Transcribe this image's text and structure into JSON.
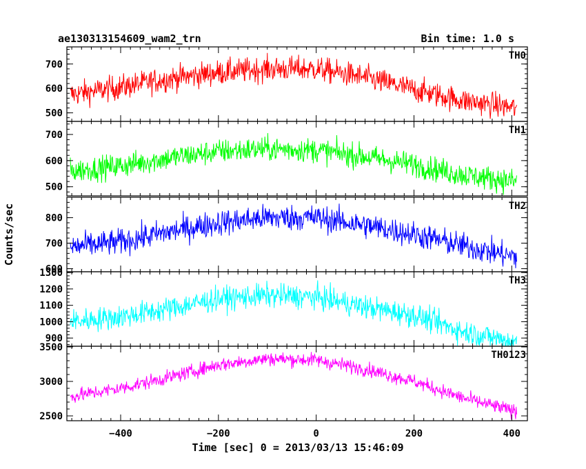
{
  "header": {
    "title": "ae130313154609_wam2_trn",
    "bin_time": "Bin time: 1.0 s"
  },
  "chart_data": {
    "type": "line",
    "xlabel": "Time [sec] 0 = 2013/03/13 15:46:09",
    "ylabel": "Counts/sec",
    "xlim": [
      -510,
      432
    ],
    "x_range": [
      -503,
      410
    ],
    "x_ticks": [
      -400,
      -200,
      0,
      200,
      400
    ],
    "x_tick_labels": [
      "−400",
      "−200",
      "0",
      "200",
      "400"
    ],
    "panels": [
      {
        "name": "TH0",
        "color": "#ff0000",
        "ylim": [
          465,
          770
        ],
        "yticks": [
          500,
          600,
          700
        ],
        "trend_x": [
          -503,
          -400,
          -300,
          -200,
          -100,
          0,
          100,
          200,
          300,
          410
        ],
        "trend_y": [
          575,
          605,
          640,
          665,
          680,
          680,
          645,
          595,
          550,
          520
        ],
        "noise": 35
      },
      {
        "name": "TH1",
        "color": "#00ff00",
        "ylim": [
          465,
          750
        ],
        "yticks": [
          500,
          600,
          700
        ],
        "trend_x": [
          -503,
          -400,
          -300,
          -200,
          -100,
          0,
          100,
          200,
          300,
          410
        ],
        "trend_y": [
          560,
          580,
          610,
          635,
          645,
          640,
          615,
          585,
          545,
          520
        ],
        "noise": 32
      },
      {
        "name": "TH2",
        "color": "#0000ff",
        "ylim": [
          588,
          880
        ],
        "yticks": [
          600,
          700,
          800
        ],
        "trend_x": [
          -503,
          -400,
          -300,
          -200,
          -100,
          0,
          100,
          200,
          300,
          410
        ],
        "trend_y": [
          685,
          705,
          745,
          780,
          800,
          800,
          770,
          735,
          690,
          645
        ],
        "noise": 35
      },
      {
        "name": "TH3",
        "color": "#00ffff",
        "ylim": [
          850,
          1305
        ],
        "yticks": [
          900,
          1000,
          1100,
          1200,
          1300
        ],
        "trend_x": [
          -503,
          -400,
          -300,
          -200,
          -100,
          0,
          100,
          200,
          300,
          410
        ],
        "trend_y": [
          1000,
          1030,
          1080,
          1140,
          1160,
          1150,
          1090,
          1040,
          940,
          875
        ],
        "noise": 50
      },
      {
        "name": "TH0123",
        "color": "#ff00ff",
        "ylim": [
          2430,
          3510
        ],
        "yticks": [
          2500,
          3000,
          3500
        ],
        "trend_x": [
          -503,
          -400,
          -300,
          -200,
          -100,
          0,
          100,
          200,
          300,
          410
        ],
        "trend_y": [
          2780,
          2900,
          3060,
          3240,
          3330,
          3310,
          3180,
          3000,
          2760,
          2560
        ],
        "noise": 70
      }
    ]
  }
}
